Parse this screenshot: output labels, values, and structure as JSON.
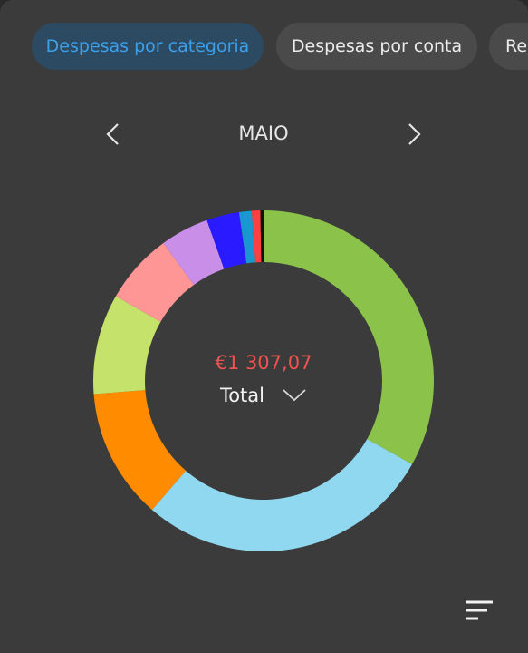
{
  "tabs": [
    "Despesas por categoria",
    "Despesas por conta",
    "Re"
  ],
  "active_tab": 0,
  "month": "MAIO",
  "total_amount": "€1 307,07",
  "total_label": "Total",
  "chart_data": {
    "type": "donut",
    "values": [
      33.1,
      28.2,
      12.4,
      9.5,
      6.7,
      4.6,
      3.1,
      1.2,
      0.8,
      0.3
    ],
    "colors": [
      "#8bc34a",
      "#90d8f0",
      "#ff8c00",
      "#c5e36b",
      "#ff9696",
      "#c98ee8",
      "#2a1aff",
      "#1a96d0",
      "#ff4040",
      "#111111"
    ]
  }
}
